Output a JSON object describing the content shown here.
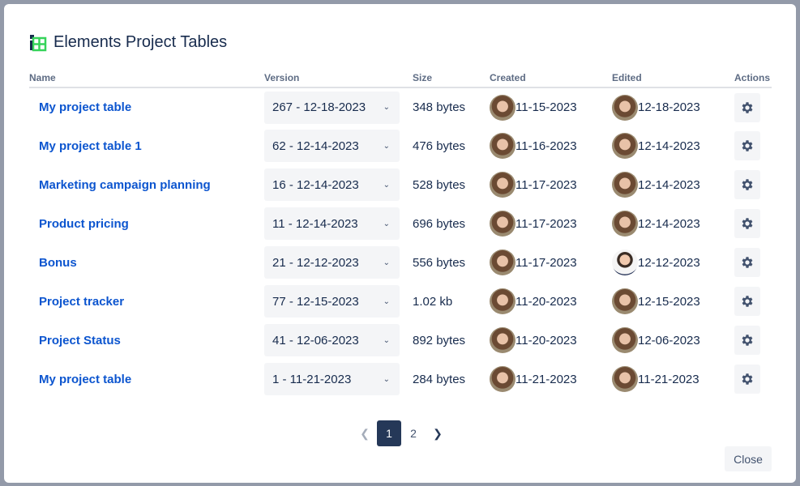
{
  "title": "Elements Project Tables",
  "columns": {
    "name": "Name",
    "version": "Version",
    "size": "Size",
    "created": "Created",
    "edited": "Edited",
    "actions": "Actions"
  },
  "rows": [
    {
      "name": "My project table",
      "version": "267 - 12-18-2023",
      "size": "348 bytes",
      "created": "11-15-2023",
      "edited": "12-18-2023",
      "edited_user": "f"
    },
    {
      "name": "My project table 1",
      "version": "62 - 12-14-2023",
      "size": "476 bytes",
      "created": "11-16-2023",
      "edited": "12-14-2023",
      "edited_user": "f"
    },
    {
      "name": "Marketing campaign planning",
      "version": "16 - 12-14-2023",
      "size": "528 bytes",
      "created": "11-17-2023",
      "edited": "12-14-2023",
      "edited_user": "f"
    },
    {
      "name": "Product pricing",
      "version": "11 - 12-14-2023",
      "size": "696 bytes",
      "created": "11-17-2023",
      "edited": "12-14-2023",
      "edited_user": "f"
    },
    {
      "name": "Bonus",
      "version": "21 - 12-12-2023",
      "size": "556 bytes",
      "created": "11-17-2023",
      "edited": "12-12-2023",
      "edited_user": "m"
    },
    {
      "name": "Project tracker",
      "version": "77 - 12-15-2023",
      "size": "1.02 kb",
      "created": "11-20-2023",
      "edited": "12-15-2023",
      "edited_user": "f"
    },
    {
      "name": "Project Status",
      "version": "41 - 12-06-2023",
      "size": "892 bytes",
      "created": "11-20-2023",
      "edited": "12-06-2023",
      "edited_user": "f"
    },
    {
      "name": "My project table",
      "version": "1 - 11-21-2023",
      "size": "284 bytes",
      "created": "11-21-2023",
      "edited": "11-21-2023",
      "edited_user": "f"
    }
  ],
  "pagination": {
    "pages": [
      "1",
      "2"
    ],
    "current": "1",
    "prev_icon": "chevron-left-icon",
    "next_icon": "chevron-right-icon"
  },
  "close_label": "Close",
  "colors": {
    "link": "#0c55cf",
    "current_page": "#253858",
    "logo_green": "#36d35a"
  }
}
